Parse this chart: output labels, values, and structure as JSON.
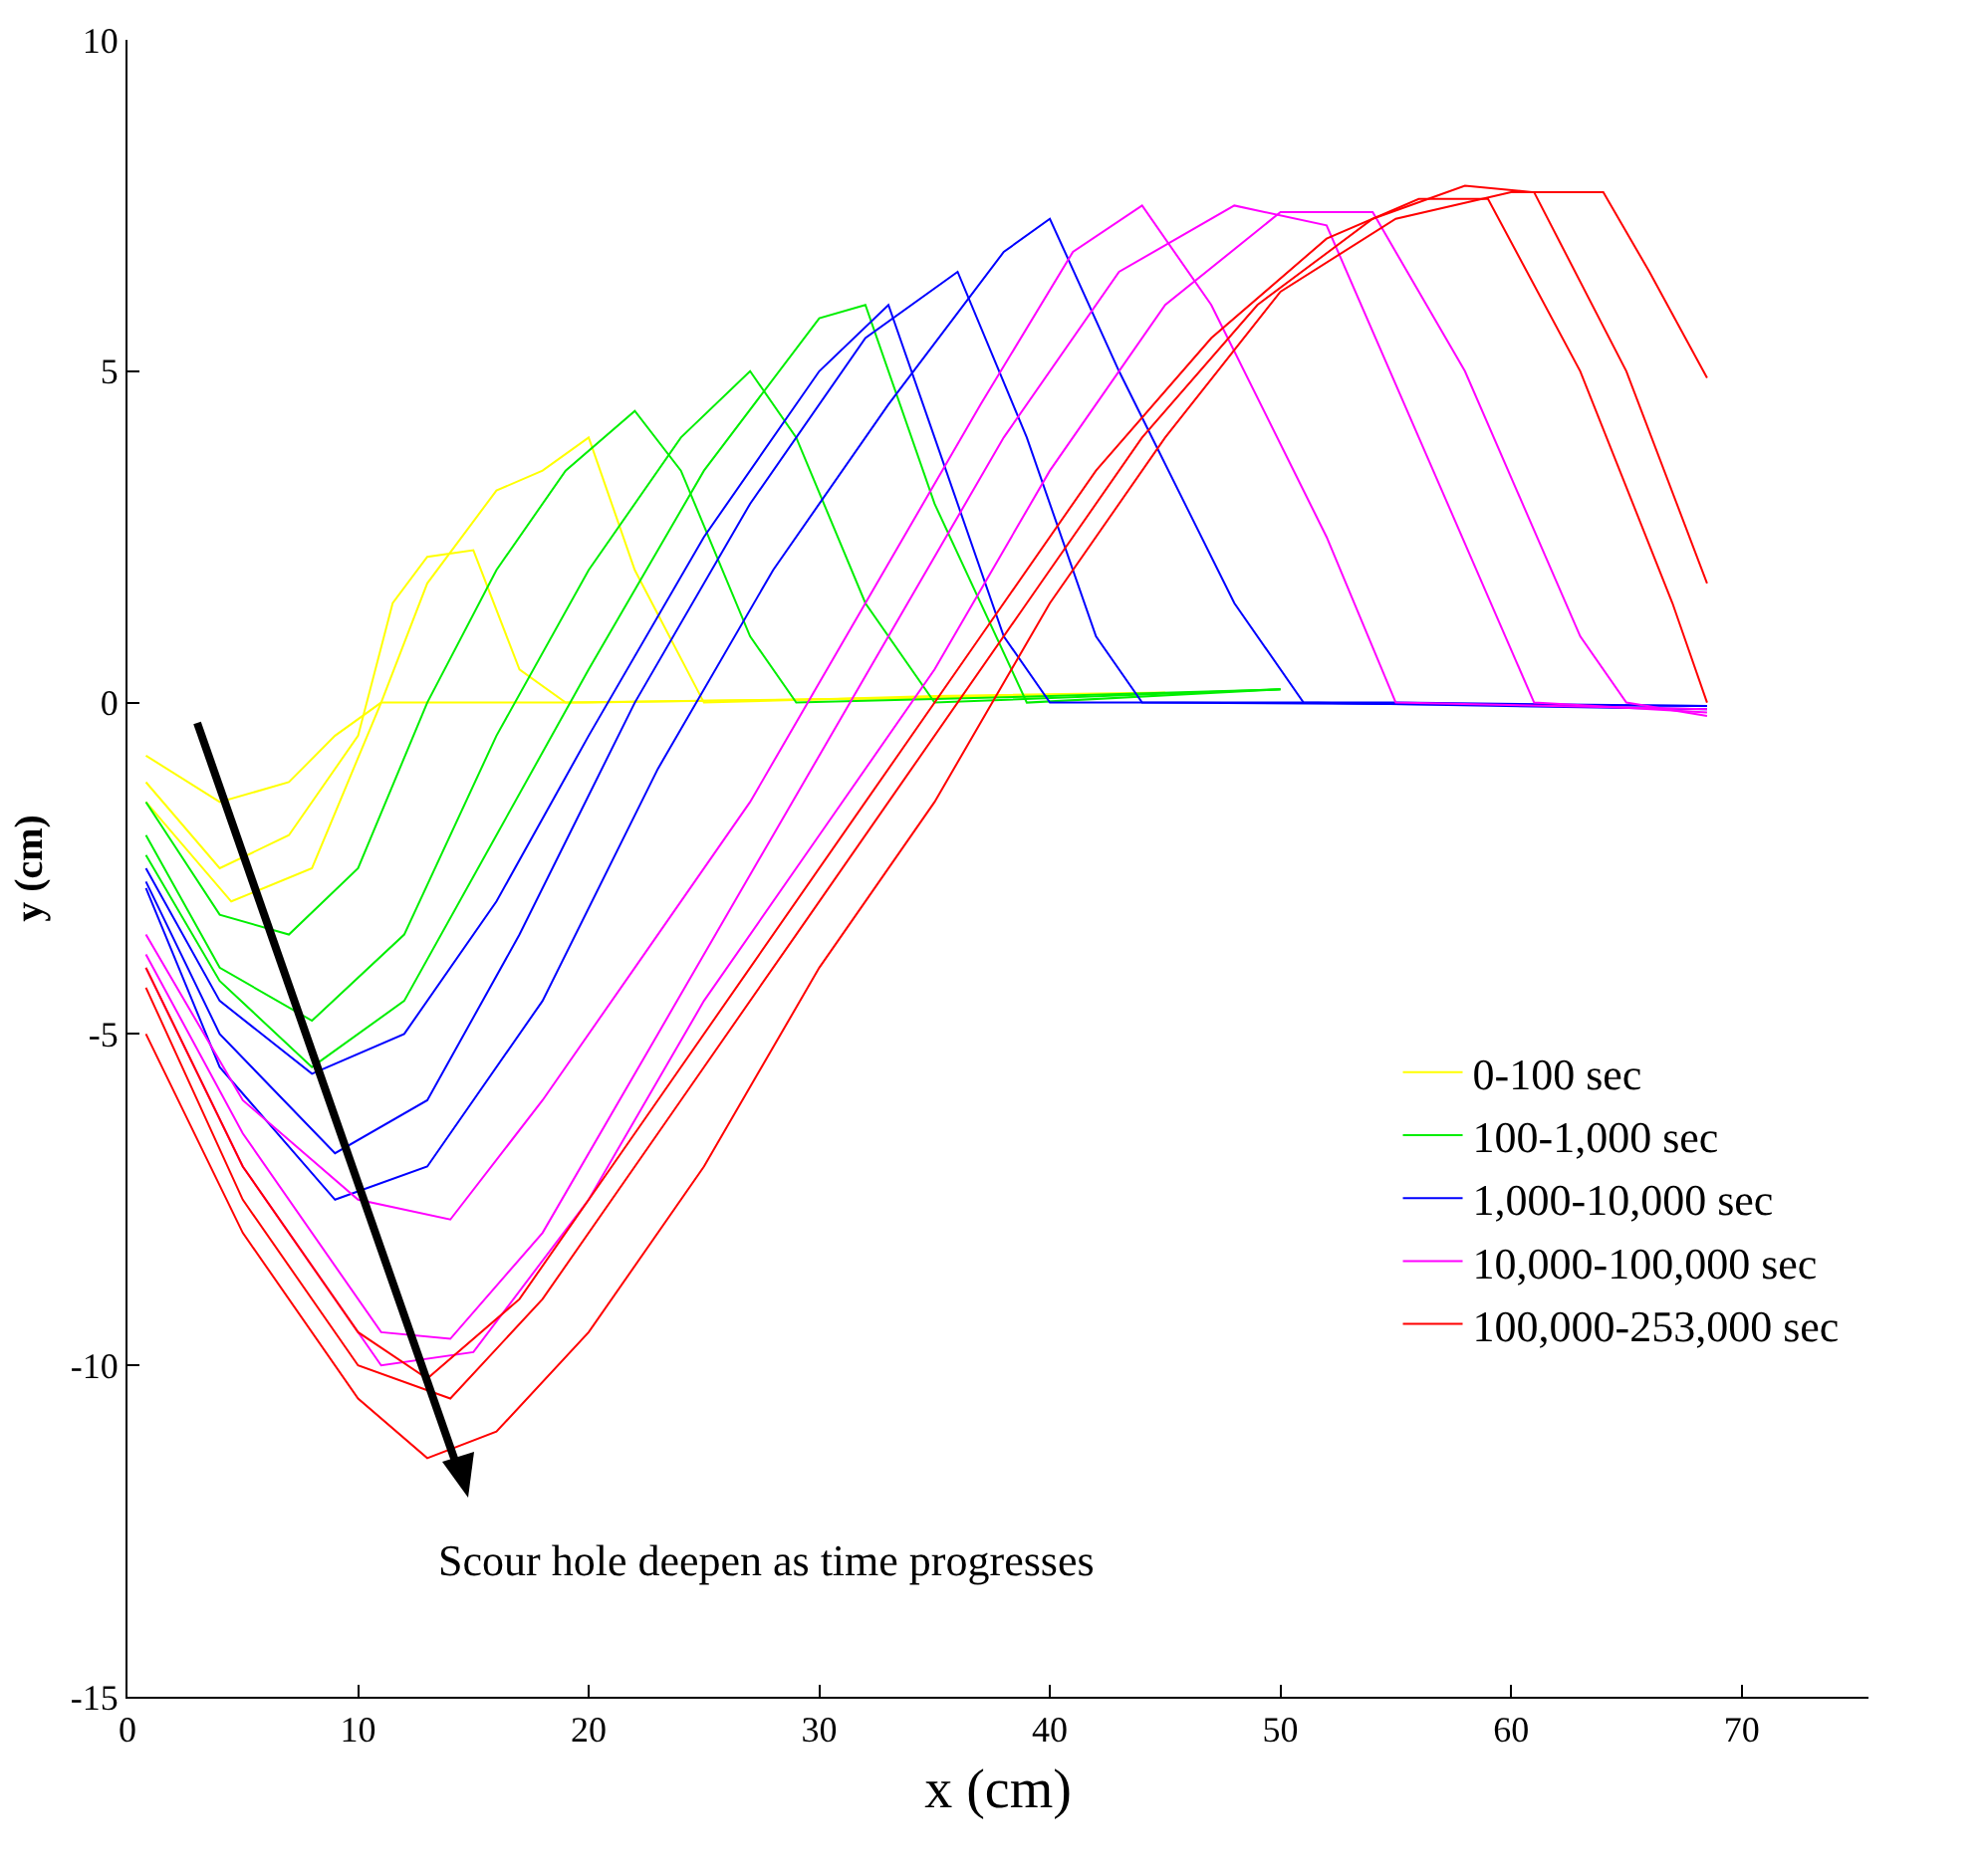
{
  "chart_data": {
    "type": "line",
    "xlabel": "x (cm)",
    "ylabel": "y (cm)",
    "xlim": [
      0,
      75.5
    ],
    "ylim": [
      -15,
      10
    ],
    "xticks": [
      0,
      10,
      20,
      30,
      40,
      50,
      60,
      70
    ],
    "yticks": [
      -15,
      -10,
      -5,
      0,
      5,
      10
    ],
    "grid": false,
    "legend": "bottom right",
    "marker": "none",
    "line_style": "solid",
    "annotations": [
      "Scour hole deepen as time progresses"
    ],
    "series": [
      {
        "name": "0-100 sec",
        "color": "#ffff00",
        "x": [
          0.8,
          4,
          7,
          9,
          11,
          15,
          20,
          30,
          40
        ],
        "values": [
          -0.8,
          -1.5,
          -1.2,
          -0.5,
          0,
          0,
          0,
          0.05,
          0.1
        ]
      },
      {
        "color": "#ffff00",
        "x": [
          0.8,
          4,
          7,
          10,
          11.5,
          13,
          15,
          17,
          19,
          30,
          40
        ],
        "values": [
          -1.2,
          -2.5,
          -2,
          -0.5,
          1.5,
          2.2,
          2.3,
          0.5,
          0,
          0.05,
          0.1
        ]
      },
      {
        "color": "#ffff00",
        "x": [
          0.8,
          4.5,
          8,
          11,
          13,
          16,
          18,
          20,
          22,
          25,
          35,
          45
        ],
        "values": [
          -1.5,
          -3,
          -2.5,
          0,
          1.8,
          3.2,
          3.5,
          4,
          2,
          0,
          0.1,
          0.15
        ]
      },
      {
        "name": "100-1,000 sec",
        "color": "#00ee00",
        "x": [
          0.8,
          4,
          7,
          10,
          13,
          16,
          19,
          22,
          24,
          27,
          29,
          40,
          50
        ],
        "values": [
          -1.5,
          -3.2,
          -3.5,
          -2.5,
          0,
          2,
          3.5,
          4.4,
          3.5,
          1,
          0,
          0.1,
          0.2
        ]
      },
      {
        "color": "#00ee00",
        "x": [
          0.8,
          4,
          8,
          12,
          16,
          20,
          24,
          27,
          29,
          32,
          35,
          50
        ],
        "values": [
          -2,
          -4,
          -4.8,
          -3.5,
          -0.5,
          2,
          4,
          5,
          4,
          1.5,
          0,
          0.2
        ]
      },
      {
        "color": "#00ee00",
        "x": [
          0.8,
          4,
          8,
          12,
          16,
          20,
          25,
          30,
          32,
          35,
          39,
          50
        ],
        "values": [
          -2.3,
          -4.2,
          -5.5,
          -4.5,
          -2,
          0.5,
          3.5,
          5.8,
          6,
          3,
          0,
          0.2
        ]
      },
      {
        "name": "1,000-10,000 sec",
        "color": "#0000ff",
        "x": [
          0.8,
          4,
          8,
          12,
          16,
          20,
          25,
          30,
          33,
          35,
          38,
          40,
          55,
          68.5
        ],
        "values": [
          -2.5,
          -4.5,
          -5.6,
          -5,
          -3,
          -0.5,
          2.5,
          5,
          6,
          4,
          1,
          0,
          0,
          -0.05
        ]
      },
      {
        "color": "#0000ff",
        "x": [
          0.8,
          4,
          9,
          13,
          17,
          22,
          27,
          32,
          36,
          39,
          42,
          44,
          68.5
        ],
        "values": [
          -2.7,
          -5,
          -6.8,
          -6,
          -3.5,
          0,
          3,
          5.5,
          6.5,
          4,
          1,
          0,
          -0.05
        ]
      },
      {
        "color": "#0000ff",
        "x": [
          0.8,
          4,
          9,
          13,
          18,
          23,
          28,
          33,
          38,
          40,
          43,
          48,
          51,
          68.5
        ],
        "values": [
          -2.8,
          -5.5,
          -7.5,
          -7,
          -4.5,
          -1,
          2,
          4.5,
          6.8,
          7.3,
          5,
          1.5,
          0,
          -0.1
        ]
      },
      {
        "name": "10,000-100,000 sec",
        "color": "#ff00ff",
        "x": [
          0.8,
          5,
          10,
          14,
          18,
          22,
          27,
          32,
          37,
          41,
          44,
          47,
          52,
          55,
          68.5
        ],
        "values": [
          -3.5,
          -6,
          -7.5,
          -7.8,
          -6,
          -4,
          -1.5,
          1.5,
          4.5,
          6.8,
          7.5,
          6,
          2.5,
          0,
          -0.1
        ]
      },
      {
        "color": "#ff00ff",
        "x": [
          0.8,
          5,
          11,
          14,
          18,
          23,
          28,
          33,
          38,
          43,
          48,
          52,
          56,
          61,
          68.5
        ],
        "values": [
          -3.8,
          -6.5,
          -9.5,
          -9.6,
          -8,
          -5,
          -2,
          1,
          4,
          6.5,
          7.5,
          7.2,
          4,
          0,
          -0.15
        ]
      },
      {
        "color": "#ff00ff",
        "x": [
          0.8,
          5,
          11,
          15,
          20,
          25,
          30,
          35,
          40,
          45,
          50,
          54,
          58,
          63,
          65,
          68.5
        ],
        "values": [
          -4,
          -7,
          -10,
          -9.8,
          -7.5,
          -4.5,
          -2,
          0.5,
          3.5,
          6,
          7.4,
          7.4,
          5,
          1,
          0,
          -0.2
        ]
      },
      {
        "name": "100,000-253,000 sec",
        "color": "#ff0000",
        "x": [
          0.8,
          5,
          10,
          13,
          17,
          22,
          27,
          32,
          37,
          42,
          47,
          52,
          56,
          59,
          63,
          67,
          68.5
        ],
        "values": [
          -4,
          -7,
          -9.5,
          -10.2,
          -9,
          -6.5,
          -4,
          -1.5,
          1,
          3.5,
          5.5,
          7,
          7.6,
          7.6,
          5,
          1.5,
          0
        ]
      },
      {
        "color": "#ff0000",
        "x": [
          0.8,
          5,
          10,
          14,
          18,
          24,
          29,
          34,
          39,
          44,
          49,
          54,
          58,
          61,
          65,
          68.5
        ],
        "values": [
          -4.3,
          -7.5,
          -10,
          -10.5,
          -9,
          -6,
          -3.5,
          -1,
          1.5,
          4,
          6,
          7.3,
          7.8,
          7.7,
          5,
          1.8
        ]
      },
      {
        "color": "#ff0000",
        "x": [
          0.8,
          5,
          10,
          13,
          16,
          20,
          25,
          30,
          35,
          40,
          45,
          50,
          55,
          60,
          64,
          66,
          68.5
        ],
        "values": [
          -5,
          -8,
          -10.5,
          -11.4,
          -11,
          -9.5,
          -7,
          -4,
          -1.5,
          1.5,
          4,
          6.2,
          7.3,
          7.7,
          7.7,
          6.5,
          4.9
        ]
      }
    ]
  }
}
